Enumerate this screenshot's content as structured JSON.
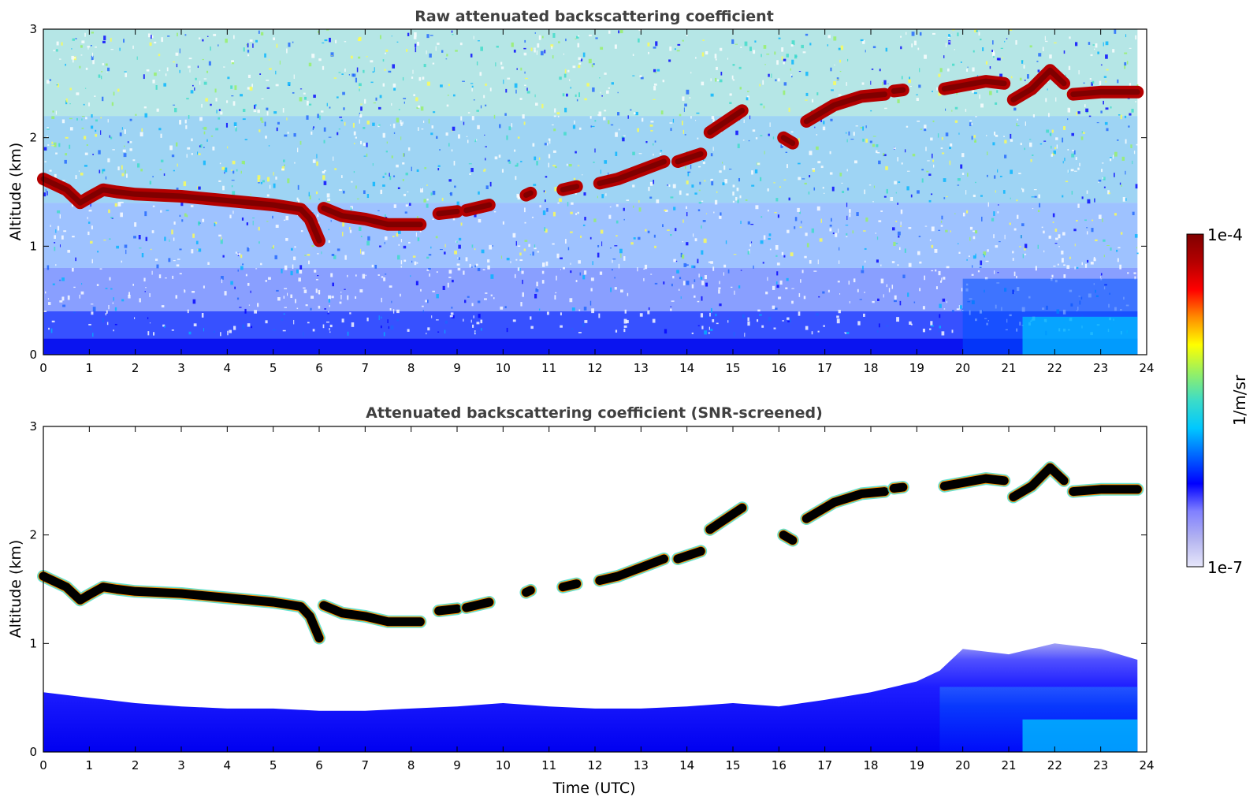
{
  "chart_data": [
    {
      "type": "heatmap",
      "title": "Raw attenuated backscattering coefficient",
      "xlabel": "",
      "ylabel": "Altitude (km)",
      "xlim": [
        0,
        24
      ],
      "ylim": [
        0,
        3
      ],
      "xticks": [
        "0",
        "1",
        "2",
        "3",
        "4",
        "5",
        "6",
        "7",
        "8",
        "9",
        "10",
        "11",
        "12",
        "13",
        "14",
        "15",
        "16",
        "17",
        "18",
        "19",
        "20",
        "21",
        "22",
        "23",
        "24"
      ],
      "yticks": [
        "0",
        "1",
        "2",
        "3"
      ],
      "data_extent_x": [
        0,
        23.8
      ],
      "cloud_layer": {
        "unit_x": "hour UTC",
        "unit_y": "km",
        "segments": [
          {
            "x": [
              0,
              0.5,
              0.8,
              1.0,
              1.3,
              1.6,
              2.0,
              3.0,
              4.0,
              5.0,
              5.6,
              5.8,
              6.0
            ],
            "y": [
              1.62,
              1.52,
              1.4,
              1.45,
              1.52,
              1.5,
              1.48,
              1.46,
              1.42,
              1.38,
              1.34,
              1.25,
              1.05
            ]
          },
          {
            "x": [
              6.1,
              6.5,
              7.0,
              7.5,
              8.2
            ],
            "y": [
              1.35,
              1.28,
              1.25,
              1.2,
              1.2
            ]
          },
          {
            "x": [
              8.6,
              9.0
            ],
            "y": [
              1.3,
              1.32
            ]
          },
          {
            "x": [
              9.2,
              9.7
            ],
            "y": [
              1.33,
              1.38
            ]
          },
          {
            "x": [
              10.5,
              10.6
            ],
            "y": [
              1.47,
              1.49
            ]
          },
          {
            "x": [
              11.3,
              11.6
            ],
            "y": [
              1.52,
              1.55
            ]
          },
          {
            "x": [
              12.1,
              12.5,
              13.0,
              13.5
            ],
            "y": [
              1.58,
              1.62,
              1.7,
              1.78
            ]
          },
          {
            "x": [
              13.8,
              14.3
            ],
            "y": [
              1.78,
              1.85
            ]
          },
          {
            "x": [
              14.5,
              15.2
            ],
            "y": [
              2.05,
              2.25
            ]
          },
          {
            "x": [
              16.1,
              16.3
            ],
            "y": [
              2.0,
              1.95
            ]
          },
          {
            "x": [
              16.6,
              17.2,
              17.8,
              18.3
            ],
            "y": [
              2.15,
              2.3,
              2.38,
              2.4
            ]
          },
          {
            "x": [
              18.5,
              18.7
            ],
            "y": [
              2.43,
              2.44
            ]
          },
          {
            "x": [
              19.6,
              20.5,
              20.9
            ],
            "y": [
              2.45,
              2.52,
              2.5
            ]
          },
          {
            "x": [
              21.1,
              21.5,
              21.9,
              22.2
            ],
            "y": [
              2.35,
              2.45,
              2.62,
              2.5
            ]
          },
          {
            "x": [
              22.4,
              23.0,
              23.8
            ],
            "y": [
              2.4,
              2.42,
              2.42
            ]
          }
        ]
      }
    },
    {
      "type": "heatmap",
      "title": "Attenuated backscattering coefficient (SNR-screened)",
      "xlabel": "Time (UTC)",
      "ylabel": "Altitude (km)",
      "xlim": [
        0,
        24
      ],
      "ylim": [
        0,
        3
      ],
      "xticks": [
        "0",
        "1",
        "2",
        "3",
        "4",
        "5",
        "6",
        "7",
        "8",
        "9",
        "10",
        "11",
        "12",
        "13",
        "14",
        "15",
        "16",
        "17",
        "18",
        "19",
        "20",
        "21",
        "22",
        "23",
        "24"
      ],
      "yticks": [
        "0",
        "1",
        "2",
        "3"
      ],
      "data_extent_x": [
        0,
        23.8
      ],
      "boundary_layer_top": {
        "x": [
          0,
          1,
          2,
          3,
          4,
          5,
          6,
          7,
          8,
          9,
          10,
          11,
          12,
          13,
          14,
          15,
          16,
          17,
          18,
          19,
          19.5,
          20,
          21,
          22,
          23,
          23.8
        ],
        "y": [
          0.55,
          0.5,
          0.45,
          0.42,
          0.4,
          0.4,
          0.38,
          0.38,
          0.4,
          0.42,
          0.45,
          0.42,
          0.4,
          0.4,
          0.42,
          0.45,
          0.42,
          0.48,
          0.55,
          0.65,
          0.75,
          0.95,
          0.9,
          1.0,
          0.95,
          0.85
        ]
      }
    }
  ],
  "colorbar": {
    "label": "1/m/sr",
    "max_label": "1e-4",
    "min_label": "1e-7",
    "colors": [
      "#e6e6fa",
      "#b4b4f0",
      "#8080ff",
      "#0000ff",
      "#0064ff",
      "#00c8ff",
      "#3cdcc8",
      "#96f064",
      "#ffff00",
      "#ff8c00",
      "#ff0000",
      "#b40000",
      "#800000"
    ]
  }
}
